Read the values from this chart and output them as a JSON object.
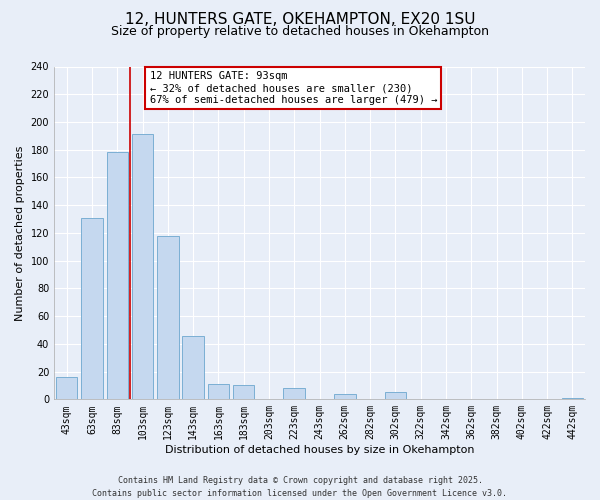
{
  "title": "12, HUNTERS GATE, OKEHAMPTON, EX20 1SU",
  "subtitle": "Size of property relative to detached houses in Okehampton",
  "xlabel": "Distribution of detached houses by size in Okehampton",
  "ylabel": "Number of detached properties",
  "bar_labels": [
    "43sqm",
    "63sqm",
    "83sqm",
    "103sqm",
    "123sqm",
    "143sqm",
    "163sqm",
    "183sqm",
    "203sqm",
    "223sqm",
    "243sqm",
    "262sqm",
    "282sqm",
    "302sqm",
    "322sqm",
    "342sqm",
    "362sqm",
    "382sqm",
    "402sqm",
    "422sqm",
    "442sqm"
  ],
  "bar_values": [
    16,
    131,
    178,
    191,
    118,
    46,
    11,
    10,
    0,
    8,
    0,
    4,
    0,
    5,
    0,
    0,
    0,
    0,
    0,
    0,
    1
  ],
  "bar_color": "#c5d8ef",
  "bar_edge_color": "#7bafd4",
  "ylim": [
    0,
    240
  ],
  "yticks": [
    0,
    20,
    40,
    60,
    80,
    100,
    120,
    140,
    160,
    180,
    200,
    220,
    240
  ],
  "vline_x_idx": 2.5,
  "vline_color": "#cc0000",
  "annotation_title": "12 HUNTERS GATE: 93sqm",
  "annotation_line1": "← 32% of detached houses are smaller (230)",
  "annotation_line2": "67% of semi-detached houses are larger (479) →",
  "annotation_box_color": "#ffffff",
  "annotation_box_edge": "#cc0000",
  "footer_line1": "Contains HM Land Registry data © Crown copyright and database right 2025.",
  "footer_line2": "Contains public sector information licensed under the Open Government Licence v3.0.",
  "background_color": "#e8eef8",
  "grid_color": "#ffffff",
  "title_fontsize": 11,
  "subtitle_fontsize": 9,
  "axis_label_fontsize": 8,
  "tick_fontsize": 7,
  "annotation_fontsize": 7.5,
  "footer_fontsize": 6
}
